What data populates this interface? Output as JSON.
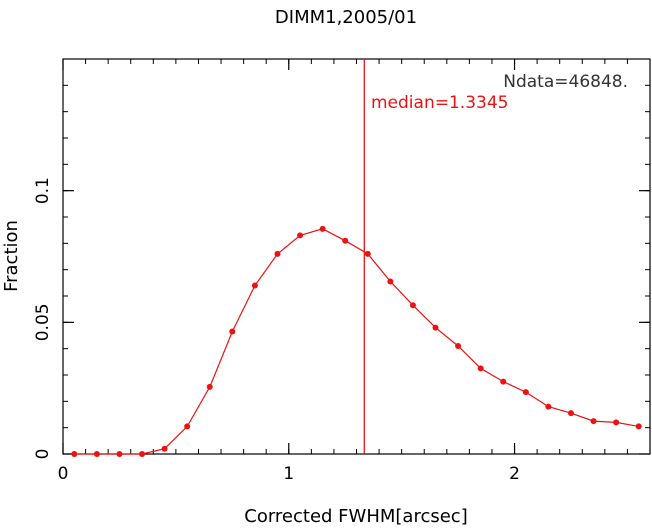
{
  "chart_data": {
    "type": "line",
    "title": "DIMM1,2005/01",
    "xlabel": "Corrected FWHM[arcsec]",
    "ylabel": "Fraction",
    "xlim": [
      0,
      2.6
    ],
    "ylim": [
      0,
      0.15
    ],
    "x_ticks": [
      {
        "value": 0,
        "label": "0"
      },
      {
        "value": 1,
        "label": "1"
      },
      {
        "value": 2,
        "label": "2"
      }
    ],
    "y_ticks": [
      {
        "value": 0,
        "label": "0"
      },
      {
        "value": 0.05,
        "label": "0.05"
      },
      {
        "value": 0.1,
        "label": "0.1"
      }
    ],
    "x_minor_step": 0.1,
    "y_minor_step": 0.01,
    "grid": false,
    "series": [
      {
        "color": "#ee1111",
        "x": [
          0.05,
          0.15,
          0.25,
          0.35,
          0.45,
          0.55,
          0.65,
          0.75,
          0.85,
          0.95,
          1.05,
          1.15,
          1.25,
          1.35,
          1.45,
          1.55,
          1.65,
          1.75,
          1.85,
          1.95,
          2.05,
          2.15,
          2.25,
          2.35,
          2.45,
          2.55
        ],
        "y": [
          0.0,
          0.0,
          0.0,
          0.0,
          0.002,
          0.0105,
          0.0255,
          0.0465,
          0.064,
          0.076,
          0.083,
          0.0855,
          0.081,
          0.076,
          0.0655,
          0.0565,
          0.048,
          0.041,
          0.0325,
          0.0275,
          0.0235,
          0.018,
          0.0155,
          0.0125,
          0.012,
          0.0105
        ]
      }
    ],
    "median_line": {
      "x": 1.3345,
      "color": "#ee1111"
    },
    "annotations": {
      "ndata": "Ndata=46848.",
      "median": "median=1.3345"
    }
  }
}
